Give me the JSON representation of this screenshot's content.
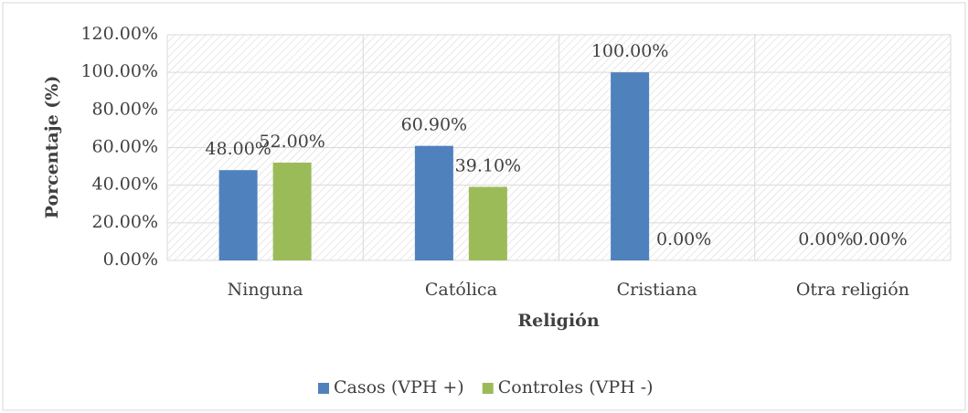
{
  "chart_data": {
    "type": "bar",
    "y_axis_label": "Porcentaje (%)",
    "x_axis_label": "Religión",
    "categories": [
      "Ninguna",
      "Católica",
      "Cristiana",
      "Otra religión"
    ],
    "series": [
      {
        "name": "Casos (VPH +)",
        "color": "#4f81bd",
        "values": [
          48,
          60.9,
          100,
          0
        ],
        "value_labels": [
          "48.00%",
          "60.90%",
          "100.00%",
          "0.00%"
        ]
      },
      {
        "name": "Controles (VPH -)",
        "color": "#9bbb59",
        "values": [
          52,
          39.1,
          0,
          0
        ],
        "value_labels": [
          "52.00%",
          "39.10%",
          "0.00%",
          "0.00%"
        ]
      }
    ],
    "ylim": [
      0,
      120
    ],
    "yticks": [
      {
        "value": 0,
        "label": "0.00%"
      },
      {
        "value": 20,
        "label": "20.00%"
      },
      {
        "value": 40,
        "label": "40.00%"
      },
      {
        "value": 60,
        "label": "60.00%"
      },
      {
        "value": 80,
        "label": "80.00%"
      },
      {
        "value": 100,
        "label": "100.00%"
      },
      {
        "value": 120,
        "label": "120.00%"
      }
    ],
    "grid": true,
    "legend": "bottom"
  }
}
